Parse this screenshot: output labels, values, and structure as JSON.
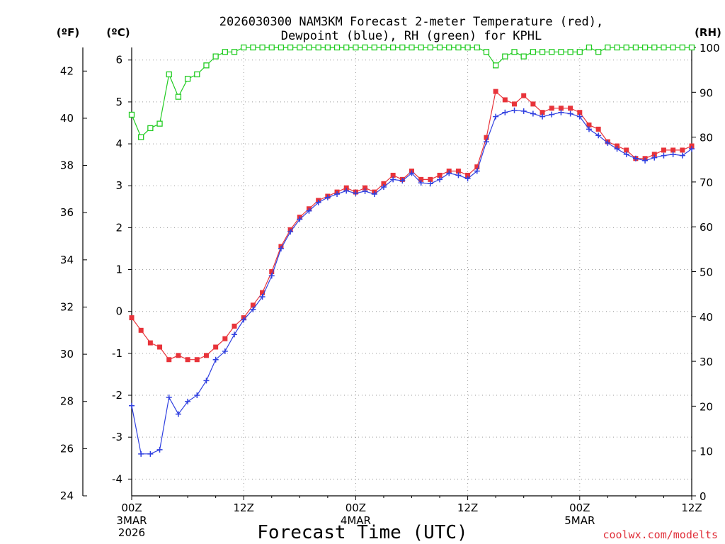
{
  "chart_data": {
    "type": "line",
    "title_line1": "2026030300 NAM3KM Forecast 2-meter Temperature (red),",
    "title_line2": "Dewpoint (blue), RH (green) for KPHL",
    "xlabel": "Forecast Time (UTC)",
    "credit": "coolwx.com/modelts",
    "left_f_unit": "(ºF)",
    "left_c_unit": "(ºC)",
    "right_unit": "(RH)",
    "x_range_hours": [
      0,
      60
    ],
    "c_range": [
      -4.4,
      6.3
    ],
    "f_range": [
      24,
      43
    ],
    "rh_range": [
      0,
      100
    ],
    "c_ticks": [
      "-4",
      "-3",
      "-2",
      "-1",
      "0",
      "1",
      "2",
      "3",
      "4",
      "5",
      "6"
    ],
    "f_ticks": [
      "24",
      "26",
      "28",
      "30",
      "32",
      "34",
      "36",
      "38",
      "40",
      "42"
    ],
    "rh_ticks": [
      "0",
      "10",
      "20",
      "30",
      "40",
      "50",
      "60",
      "70",
      "80",
      "90",
      "100"
    ],
    "x_ticks": [
      {
        "hour": 0,
        "label": "00Z",
        "sub1": "3MAR",
        "sub2": "2026"
      },
      {
        "hour": 12,
        "label": "12Z",
        "sub1": "",
        "sub2": ""
      },
      {
        "hour": 24,
        "label": "00Z",
        "sub1": "4MAR",
        "sub2": ""
      },
      {
        "hour": 36,
        "label": "12Z",
        "sub1": "",
        "sub2": ""
      },
      {
        "hour": 48,
        "label": "00Z",
        "sub1": "5MAR",
        "sub2": ""
      },
      {
        "hour": 60,
        "label": "12Z",
        "sub1": "",
        "sub2": ""
      }
    ],
    "series": [
      {
        "name": "2-meter Temperature (°C)",
        "color": "#e8333a",
        "axis": "c",
        "marker": "filled-square",
        "values": [
          -0.15,
          -0.45,
          -0.75,
          -0.85,
          -1.15,
          -1.05,
          -1.15,
          -1.15,
          -1.05,
          -0.85,
          -0.65,
          -0.35,
          -0.15,
          0.15,
          0.45,
          0.95,
          1.55,
          1.95,
          2.25,
          2.45,
          2.65,
          2.75,
          2.85,
          2.95,
          2.85,
          2.95,
          2.85,
          3.05,
          3.25,
          3.15,
          3.35,
          3.15,
          3.15,
          3.25,
          3.35,
          3.35,
          3.25,
          3.45,
          4.15,
          5.25,
          5.05,
          4.95,
          5.15,
          4.95,
          4.75,
          4.85,
          4.85,
          4.85,
          4.75,
          4.45,
          4.35,
          4.05,
          3.95,
          3.85,
          3.65,
          3.65,
          3.75,
          3.85,
          3.85,
          3.85,
          3.95
        ]
      },
      {
        "name": "Dewpoint (°C)",
        "color": "#3040e0",
        "axis": "c",
        "marker": "plus",
        "values": [
          -2.25,
          -3.4,
          -3.4,
          -3.3,
          -2.05,
          -2.45,
          -2.15,
          -2.0,
          -1.65,
          -1.15,
          -0.95,
          -0.55,
          -0.2,
          0.05,
          0.35,
          0.85,
          1.5,
          1.9,
          2.2,
          2.4,
          2.6,
          2.72,
          2.8,
          2.88,
          2.82,
          2.87,
          2.8,
          2.97,
          3.15,
          3.12,
          3.3,
          3.07,
          3.05,
          3.15,
          3.3,
          3.25,
          3.17,
          3.35,
          4.05,
          4.65,
          4.75,
          4.8,
          4.78,
          4.72,
          4.65,
          4.7,
          4.75,
          4.72,
          4.65,
          4.35,
          4.2,
          4.02,
          3.88,
          3.75,
          3.65,
          3.6,
          3.67,
          3.72,
          3.75,
          3.72,
          3.88
        ]
      },
      {
        "name": "RH (%)",
        "color": "#22cc22",
        "axis": "rh",
        "marker": "open-square",
        "values": [
          85,
          80,
          82,
          83,
          94,
          89,
          93,
          94,
          96,
          98,
          99,
          99,
          100,
          100,
          100,
          100,
          100,
          100,
          100,
          100,
          100,
          100,
          100,
          100,
          100,
          100,
          100,
          100,
          100,
          100,
          100,
          100,
          100,
          100,
          100,
          100,
          100,
          100,
          99,
          96,
          98,
          99,
          98,
          99,
          99,
          99,
          99,
          99,
          99,
          100,
          99,
          100,
          100,
          100,
          100,
          100,
          100,
          100,
          100,
          100,
          100
        ]
      }
    ]
  }
}
